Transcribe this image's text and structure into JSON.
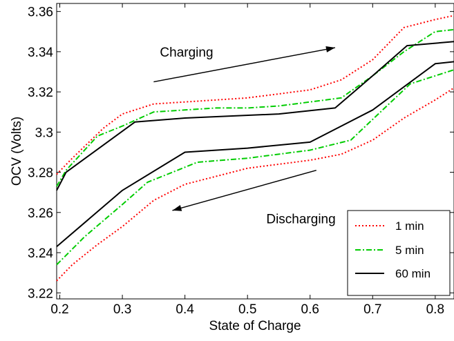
{
  "chart_data": {
    "type": "line",
    "title": "",
    "xlabel": "State of Charge",
    "ylabel": "OCV (Volts)",
    "xlim": [
      0.195,
      0.83
    ],
    "ylim": [
      3.217,
      3.364
    ],
    "xticks": [
      0.2,
      0.3,
      0.4,
      0.5,
      0.6,
      0.7,
      0.8
    ],
    "yticks": [
      3.22,
      3.24,
      3.26,
      3.28,
      3.3,
      3.32,
      3.34,
      3.36
    ],
    "xtick_labels": [
      "0.2",
      "0.3",
      "0.4",
      "0.5",
      "0.6",
      "0.7",
      "0.8"
    ],
    "ytick_labels": [
      "3.22",
      "3.24",
      "3.26",
      "3.28",
      "3.3",
      "3.32",
      "3.34",
      "3.36"
    ],
    "grid": false,
    "legend_position": "bottom-right",
    "series": [
      {
        "name": "1 min",
        "branch": "charging",
        "color": "#ff0000",
        "dash": "dotted",
        "x": [
          0.195,
          0.22,
          0.27,
          0.3,
          0.35,
          0.4,
          0.45,
          0.5,
          0.55,
          0.6,
          0.65,
          0.7,
          0.75,
          0.8,
          0.83
        ],
        "y": [
          3.279,
          3.287,
          3.302,
          3.309,
          3.314,
          3.315,
          3.316,
          3.317,
          3.319,
          3.321,
          3.326,
          3.336,
          3.352,
          3.356,
          3.358
        ]
      },
      {
        "name": "5 min",
        "branch": "charging",
        "color": "#00cc00",
        "dash": "dashdot",
        "x": [
          0.195,
          0.21,
          0.26,
          0.3,
          0.35,
          0.4,
          0.45,
          0.5,
          0.55,
          0.6,
          0.65,
          0.7,
          0.75,
          0.8,
          0.83
        ],
        "y": [
          3.273,
          3.281,
          3.298,
          3.303,
          3.31,
          3.311,
          3.312,
          3.312,
          3.313,
          3.315,
          3.317,
          3.328,
          3.34,
          3.35,
          3.351
        ]
      },
      {
        "name": "60 min",
        "branch": "charging",
        "color": "#000000",
        "dash": "solid",
        "x": [
          0.195,
          0.21,
          0.32,
          0.4,
          0.55,
          0.64,
          0.7,
          0.755,
          0.83
        ],
        "y": [
          3.271,
          3.28,
          3.305,
          3.307,
          3.309,
          3.312,
          3.328,
          3.343,
          3.345
        ]
      },
      {
        "name": "",
        "branch": "discharging",
        "color": "#ff0000",
        "dash": "dotted",
        "x": [
          0.195,
          0.22,
          0.26,
          0.3,
          0.35,
          0.4,
          0.45,
          0.5,
          0.55,
          0.6,
          0.65,
          0.7,
          0.75,
          0.8,
          0.83
        ],
        "y": [
          3.226,
          3.234,
          3.244,
          3.253,
          3.266,
          3.274,
          3.278,
          3.282,
          3.284,
          3.286,
          3.289,
          3.296,
          3.307,
          3.316,
          3.322
        ]
      },
      {
        "name": "",
        "branch": "discharging",
        "color": "#00cc00",
        "dash": "dashdot",
        "x": [
          0.195,
          0.24,
          0.3,
          0.34,
          0.42,
          0.5,
          0.6,
          0.665,
          0.76,
          0.83
        ],
        "y": [
          3.234,
          3.248,
          3.264,
          3.275,
          3.285,
          3.287,
          3.291,
          3.296,
          3.324,
          3.331
        ]
      },
      {
        "name": "",
        "branch": "discharging",
        "color": "#000000",
        "dash": "solid",
        "x": [
          0.195,
          0.3,
          0.4,
          0.5,
          0.6,
          0.7,
          0.8,
          0.83
        ],
        "y": [
          3.243,
          3.271,
          3.29,
          3.292,
          3.295,
          3.311,
          3.334,
          3.335
        ]
      }
    ],
    "annotations": [
      {
        "text": "Charging",
        "x": 0.36,
        "y": 3.34,
        "arrow_from": [
          0.35,
          3.325
        ],
        "arrow_to": [
          0.64,
          3.342
        ]
      },
      {
        "text": "Discharging",
        "x": 0.53,
        "y": 3.257,
        "arrow_from": [
          0.61,
          3.281
        ],
        "arrow_to": [
          0.38,
          3.261
        ]
      }
    ]
  }
}
